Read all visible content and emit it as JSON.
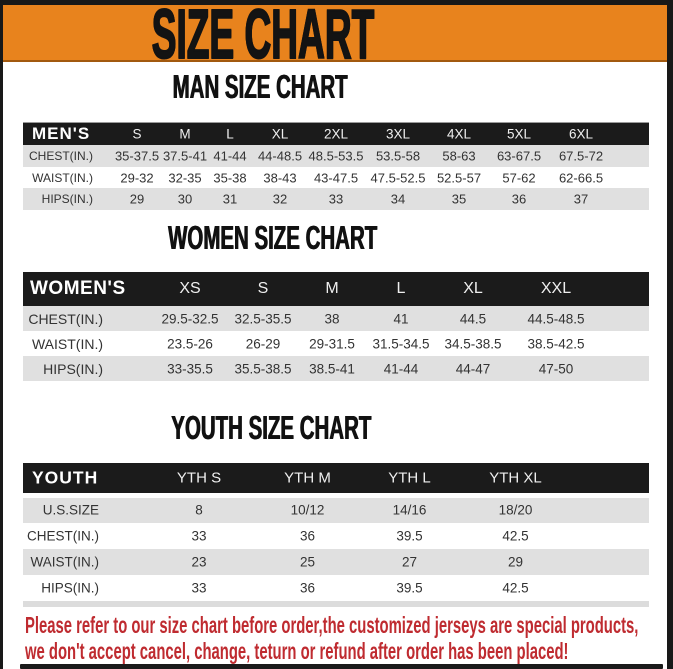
{
  "banner": {
    "title": "SIZE CHART"
  },
  "sections": [
    {
      "heading": "MAN SIZE CHART",
      "table": {
        "header": [
          "MEN'S",
          "S",
          "M",
          "L",
          "XL",
          "2XL",
          "3XL",
          "4XL",
          "5XL",
          "6XL"
        ],
        "rows": [
          [
            "CHEST(IN.)",
            "35-37.5",
            "37.5-41",
            "41-44",
            "44-48.5",
            "48.5-53.5",
            "53.5-58",
            "58-63",
            "63-67.5",
            "67.5-72"
          ],
          [
            "WAIST(IN.)",
            "29-32",
            "32-35",
            "35-38",
            "38-43",
            "43-47.5",
            "47.5-52.5",
            "52.5-57",
            "57-62",
            "62-66.5"
          ],
          [
            "HIPS(IN.)",
            "29",
            "30",
            "31",
            "32",
            "33",
            "34",
            "35",
            "36",
            "37"
          ]
        ]
      }
    },
    {
      "heading": "WOMEN SIZE CHART",
      "table": {
        "header": [
          "WOMEN'S",
          "XS",
          "S",
          "M",
          "L",
          "XL",
          "XXL"
        ],
        "rows": [
          [
            "CHEST(IN.)",
            "29.5-32.5",
            "32.5-35.5",
            "38",
            "41",
            "44.5",
            "44.5-48.5"
          ],
          [
            "WAIST(IN.)",
            "23.5-26",
            "26-29",
            "29-31.5",
            "31.5-34.5",
            "34.5-38.5",
            "38.5-42.5"
          ],
          [
            "HIPS(IN.)",
            "33-35.5",
            "35.5-38.5",
            "38.5-41",
            "41-44",
            "44-47",
            "47-50"
          ]
        ]
      }
    },
    {
      "heading": "YOUTH SIZE CHART",
      "table": {
        "header": [
          "YOUTH",
          "YTH S",
          "YTH M",
          "YTH L",
          "YTH XL"
        ],
        "rows": [
          [
            "U.S.SIZE",
            "8",
            "10/12",
            "14/16",
            "18/20"
          ],
          [
            "CHEST(IN.)",
            "33",
            "36",
            "39.5",
            "42.5"
          ],
          [
            "WAIST(IN.)",
            "23",
            "25",
            "27",
            "29"
          ],
          [
            "HIPS(IN.)",
            "33",
            "36",
            "39.5",
            "42.5"
          ]
        ]
      }
    }
  ],
  "footer": {
    "line1": "Please refer to our size chart before order,the customized jerseys are special products,",
    "line2": "we don't accept cancel, change, teturn or refund after order has been placed!"
  },
  "colors": {
    "banner_orange": "#E8831D",
    "header_black": "#1B1B1B",
    "row_gray": "#E0E0E0",
    "footer_red": "#BF2B30"
  }
}
